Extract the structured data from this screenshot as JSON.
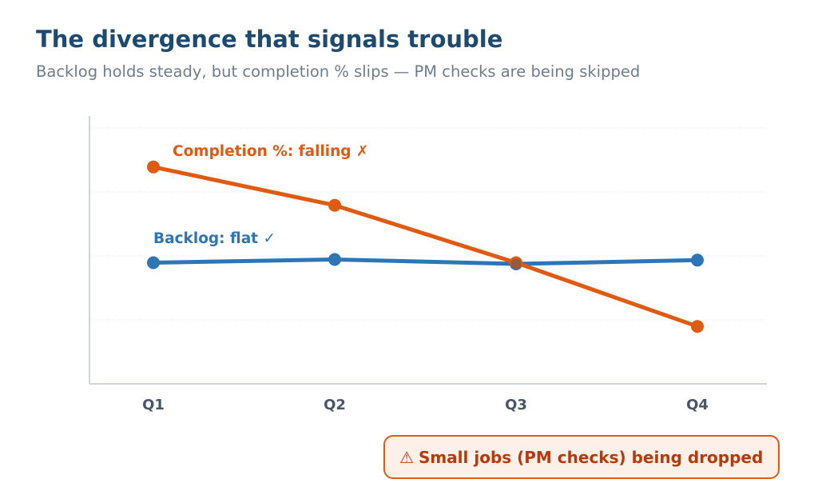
{
  "title": "The divergence that signals trouble",
  "subtitle": "Backlog holds steady, but completion % slips — PM checks are being skipped",
  "callout": {
    "icon": "warning-icon",
    "icon_glyph": "⚠",
    "text": "Small jobs (PM checks) being dropped"
  },
  "colors": {
    "title": "#1e4a70",
    "backlog": "#2e75b6",
    "completion": "#e05a12",
    "callout_bg": "#fdf0e8",
    "callout_text": "#b83a0c"
  },
  "chart_data": {
    "type": "line",
    "title": "The divergence that signals trouble",
    "categories": [
      "Q1",
      "Q2",
      "Q3",
      "Q4"
    ],
    "xlabel": "",
    "ylabel": "",
    "ylim": [
      0,
      4.2
    ],
    "y_ticks_shown": false,
    "grid": true,
    "series": [
      {
        "key": "completion",
        "label": "Completion %: falling ✗",
        "color": "#e05a12",
        "values": [
          3.4,
          2.8,
          1.9,
          0.9
        ]
      },
      {
        "key": "backlog",
        "label": "Backlog: flat ✓",
        "color": "#2e75b6",
        "values": [
          1.9,
          1.95,
          1.88,
          1.94
        ]
      }
    ]
  }
}
